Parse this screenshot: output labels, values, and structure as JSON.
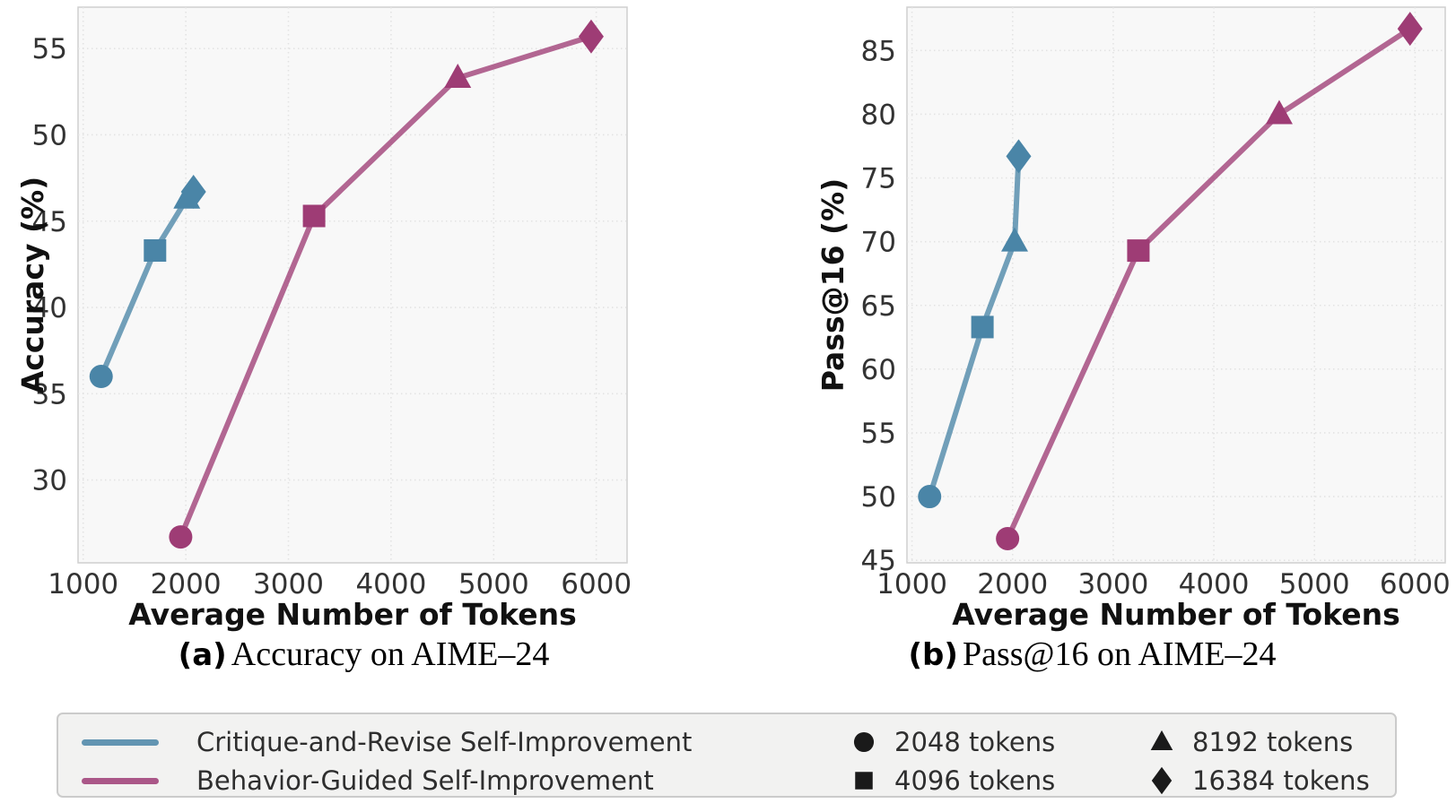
{
  "colors": {
    "critique_blue": "#4a85a7",
    "behavior_purple": "#9e3c75",
    "plot_bg": "#f8f8f8",
    "grid": "#e3e3e3",
    "spine": "#cfcfcf",
    "tick_label": "#333333",
    "axis_title": "#111111",
    "legend_bg": "#f2f2f1",
    "legend_border": "#cbcbcb",
    "legend_marker": "#1a1a1a"
  },
  "chart_data": [
    {
      "type": "line",
      "panel": "a",
      "caption_label": "(a)",
      "caption_text": "Accuracy on AIME–24",
      "xlabel": "Average Number of Tokens",
      "ylabel": "Accuracy (%)",
      "xlim": [
        950,
        6300
      ],
      "ylim": [
        25.2,
        57.4
      ],
      "xticks": [
        1000,
        2000,
        3000,
        4000,
        5000,
        6000
      ],
      "yticks": [
        30,
        35,
        40,
        45,
        50,
        55
      ],
      "grid": true,
      "legend_position": "bottom",
      "series": [
        {
          "name": "Critique-and-Revise Self-Improvement",
          "color_key": "critique_blue",
          "points": [
            {
              "x": 1175,
              "y": 36.0,
              "marker": "circle",
              "tokens": "2048 tokens"
            },
            {
              "x": 1700,
              "y": 43.3,
              "marker": "square",
              "tokens": "4096 tokens"
            },
            {
              "x": 2010,
              "y": 46.3,
              "marker": "triangle",
              "tokens": "8192 tokens"
            },
            {
              "x": 2075,
              "y": 46.7,
              "marker": "diamond",
              "tokens": "16384 tokens"
            }
          ]
        },
        {
          "name": "Behavior-Guided Self-Improvement",
          "color_key": "behavior_purple",
          "points": [
            {
              "x": 1950,
              "y": 26.7,
              "marker": "circle",
              "tokens": "2048 tokens"
            },
            {
              "x": 3250,
              "y": 45.3,
              "marker": "square",
              "tokens": "4096 tokens"
            },
            {
              "x": 4650,
              "y": 53.3,
              "marker": "triangle",
              "tokens": "8192 tokens"
            },
            {
              "x": 5950,
              "y": 55.7,
              "marker": "diamond",
              "tokens": "16384 tokens"
            }
          ]
        }
      ]
    },
    {
      "type": "line",
      "panel": "b",
      "caption_label": "(b)",
      "caption_text": "Pass@16 on AIME–24",
      "xlabel": "Average Number of Tokens",
      "ylabel": "Pass@16 (%)",
      "xlim": [
        950,
        6300
      ],
      "ylim": [
        44.8,
        88.4
      ],
      "xticks": [
        1000,
        2000,
        3000,
        4000,
        5000,
        6000
      ],
      "yticks": [
        45,
        50,
        55,
        60,
        65,
        70,
        75,
        80,
        85
      ],
      "grid": true,
      "legend_position": "bottom",
      "series": [
        {
          "name": "Critique-and-Revise Self-Improvement",
          "color_key": "critique_blue",
          "points": [
            {
              "x": 1175,
              "y": 50.0,
              "marker": "circle",
              "tokens": "2048 tokens"
            },
            {
              "x": 1700,
              "y": 63.3,
              "marker": "square",
              "tokens": "4096 tokens"
            },
            {
              "x": 2020,
              "y": 70.0,
              "marker": "triangle",
              "tokens": "8192 tokens"
            },
            {
              "x": 2060,
              "y": 76.7,
              "marker": "diamond",
              "tokens": "16384 tokens"
            }
          ]
        },
        {
          "name": "Behavior-Guided Self-Improvement",
          "color_key": "behavior_purple",
          "points": [
            {
              "x": 1950,
              "y": 46.7,
              "marker": "circle",
              "tokens": "2048 tokens"
            },
            {
              "x": 3250,
              "y": 69.3,
              "marker": "square",
              "tokens": "4096 tokens"
            },
            {
              "x": 4650,
              "y": 80.0,
              "marker": "triangle",
              "tokens": "8192 tokens"
            },
            {
              "x": 5950,
              "y": 86.7,
              "marker": "diamond",
              "tokens": "16384 tokens"
            }
          ]
        }
      ]
    }
  ],
  "legend": {
    "series": [
      {
        "label": "Critique-and-Revise Self-Improvement",
        "color_key": "critique_blue"
      },
      {
        "label": "Behavior-Guided Self-Improvement",
        "color_key": "behavior_purple"
      }
    ],
    "markers": [
      {
        "shape": "circle",
        "label": "2048 tokens"
      },
      {
        "shape": "square",
        "label": "4096 tokens"
      },
      {
        "shape": "triangle",
        "label": "8192 tokens"
      },
      {
        "shape": "diamond",
        "label": "16384 tokens"
      }
    ]
  }
}
